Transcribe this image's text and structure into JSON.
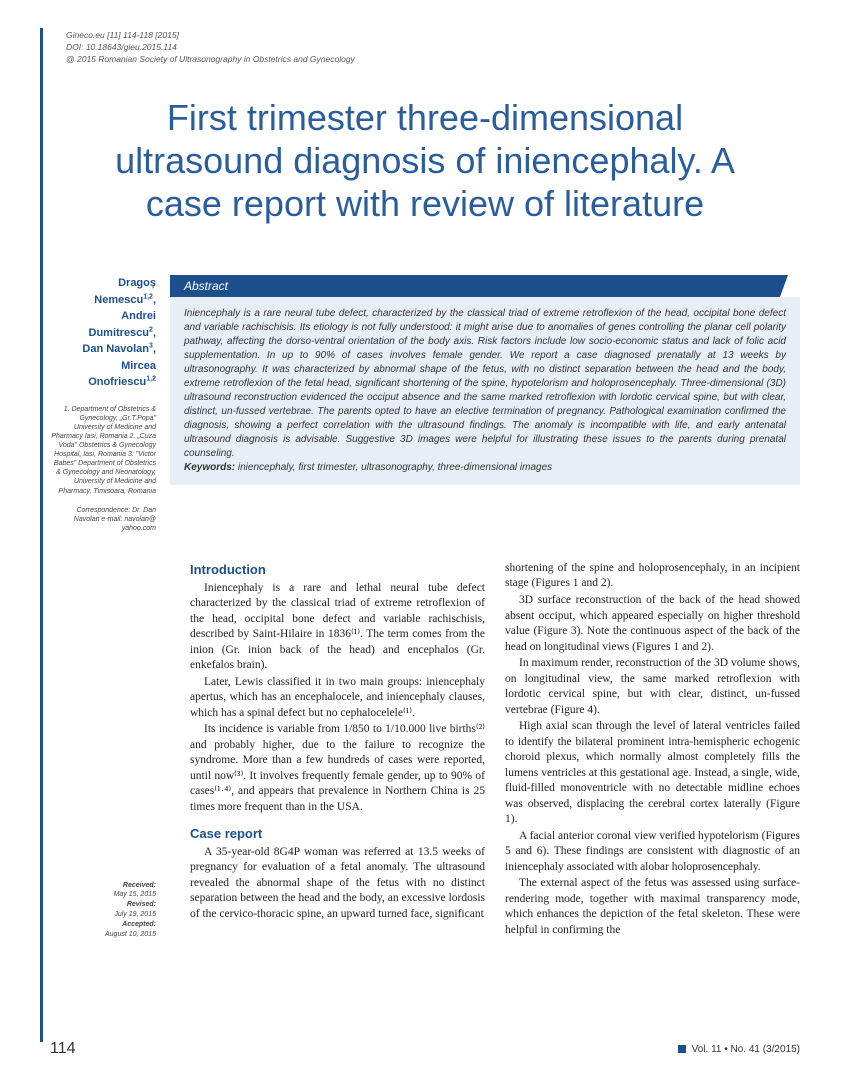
{
  "header": {
    "line1": "Gineco.eu [11] 114-118 [2015]",
    "line2": "DOI: 10.18643/gieu.2015.114",
    "line3": "@ 2015 Romanian Society of Ultrasonography in Obstetrics and Gynecology"
  },
  "title": "First trimester three-dimensional ultrasound diagnosis of iniencephaly. A case report with review of literature",
  "authors_html": "Dragoș<br>Nemescu<sup>1,2</sup>,<br>Andrei<br>Dumitrescu<sup>2</sup>,<br>Dan Navolan<sup>3</sup>,<br>Mircea<br>Onofriescu<sup>1,2</sup>",
  "affiliations": "1. Department of Obstetrics & Gynecology, „Gr.T.Popa\" University of Medicine and Pharmacy Iasi, Romania 2. „Cuza Voda\" Obstetrics & Gynecology Hospital, Iasi, Romania 3. \"Victor Babes\" Department of Obstetrics & Gynecology and Neonatology, University of Medicine and Pharmacy, Timisoara, Romania",
  "correspondence": "Correspondence: Dr. Dan Navolan e-mail: navolan@ yahoo.com",
  "abstract_label": "Abstract",
  "abstract_text": "Iniencephaly is a rare neural tube defect, characterized by the classical triad of extreme retroflexion of the head, occipital bone defect and variable rachischisis. Its etiology is not fully understood: it might arise due to anomalies of genes controlling the planar cell polarity pathway, affecting the dorso-ventral orientation of the body axis. Risk factors include low socio-economic status and lack of folic acid supplementation. In up to 90% of cases involves female gender. We report a case diagnosed prenatally at 13 weeks by ultrasonography. It was characterized by abnormal shape of the fetus, with no distinct separation between the head and the body, extreme retroflexion of the fetal head, significant shortening of the spine, hypotelorism and holoprosencephaly. Three-dimensional (3D) ultrasound reconstruction evidenced the occiput absence and the same marked retroflexion with lordotic cervical spine, but with clear, distinct, un-fussed vertebrae. The parents opted to have an elective termination of pregnancy. Pathological examination confirmed the diagnosis, showing a perfect correlation with the ultrasound findings. The anomaly is incompatible with life, and early antenatal ultrasound diagnosis is advisable. Suggestive 3D images were helpful for illustrating these issues to the parents during prenatal counseling.",
  "keywords_label": "Keywords:",
  "keywords": " iniencephaly, first trimester, ultrasonography, three-dimensional images",
  "sections": {
    "intro_h": "Introduction",
    "case_h": "Case report"
  },
  "col1": {
    "p1": "Iniencephaly is a rare and lethal neural tube defect characterized by the classical triad of extreme retroflexion of the head, occipital bone defect and variable rachischisis, described by Saint-Hilaire in 1836⁽¹⁾. The term comes from the inion (Gr. inion back of the head) and encephalos (Gr. enkefalos brain).",
    "p2": "Later, Lewis classified it in two main groups: iniencephaly apertus, which has an encephalocele, and iniencephaly clauses, which has a spinal defect but no cephalocelele⁽¹⁾.",
    "p3": "Its incidence is variable from 1/850 to 1/10.000 live births⁽²⁾ and probably higher, due to the failure to recognize the syndrome. More than a few hundreds of cases were reported, until now⁽³⁾. It involves frequently female gender, up to 90% of cases⁽¹·⁴⁾, and appears that prevalence in Northern China is 25 times more frequent than in the USA.",
    "p4": "A 35-year-old 8G4P woman was referred at 13.5 weeks of pregnancy for evaluation of a fetal anomaly. The ultrasound revealed the abnormal shape of the fetus with no distinct separation between the head and the body, an excessive lordosis of the cervico-thoracic spine, an upward turned face, significant"
  },
  "col2": {
    "p1": "shortening of the spine and holoprosencephaly, in an incipient stage (Figures 1 and 2).",
    "p2": "3D surface reconstruction of the back of the head showed absent occiput, which appeared especially on higher threshold value (Figure 3). Note the continuous aspect of the back of the head on longitudinal views (Figures 1 and 2).",
    "p3": "In maximum render, reconstruction of the 3D volume shows, on longitudinal view, the same marked retroflexion with lordotic cervical spine, but with clear, distinct, un-fussed vertebrae (Figure 4).",
    "p4": "High axial scan through the level of lateral ventricles failed to identify the bilateral prominent intra-hemispheric echogenic choroid plexus, which normally almost completely fills the lumens ventricles at this gestational age. Instead, a single, wide, fluid-filled monoventricle with no detectable midline echoes was observed, displacing the cerebral cortex laterally (Figure 1).",
    "p5": "A facial anterior coronal view verified hypotelorism (Figures 5 and 6). These findings are consistent with diagnostic of an iniencephaly associated with alobar holoprosencephaly.",
    "p6": "The external aspect of the fetus was assessed using surface-rendering mode, together with maximal transparency mode, which enhances the depiction of the fetal skeleton. These were helpful in confirming the"
  },
  "dates": {
    "received_lbl": "Received:",
    "received": "May 15, 2015",
    "revised_lbl": "Revised:",
    "revised": "July 19, 2015",
    "accepted_lbl": "Accepted:",
    "accepted": "August 10, 2015"
  },
  "footer": {
    "page": "114",
    "issue": "Vol. 11 • No. 41 (3/2015)"
  },
  "colors": {
    "brand": "#1c4f8c",
    "abstract_bg": "#e8eef5",
    "text": "#333333"
  }
}
